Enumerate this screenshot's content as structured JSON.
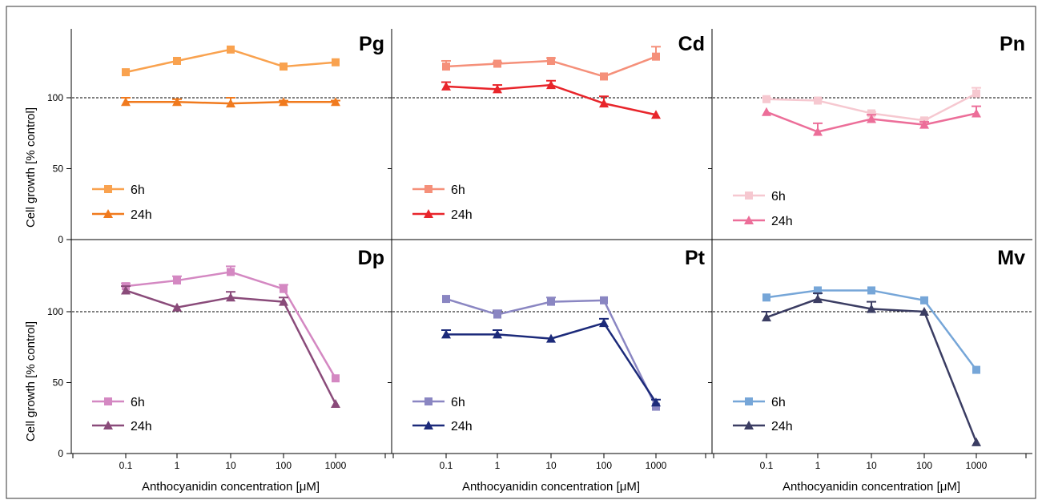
{
  "chart_data": {
    "type": "line",
    "x_categories": [
      "0.1",
      "1",
      "10",
      "100",
      "1000"
    ],
    "xlabel": "Anthocyanidin concentration [μM]",
    "ylabel": "Cell growth [% control]",
    "ylim": [
      0,
      150
    ],
    "yticks": [
      "0",
      "50",
      "100"
    ],
    "reference_line": 100,
    "legend_position": "bottom-left",
    "panels": [
      {
        "title": "Pg",
        "series": [
          {
            "name": "6h",
            "marker": "square",
            "color": "#f9a24f",
            "values": [
              118,
              126,
              134,
              122,
              125
            ],
            "errors": [
              0,
              0,
              0,
              0,
              0
            ]
          },
          {
            "name": "24h",
            "marker": "triangle",
            "color": "#f07a1e",
            "values": [
              97,
              97,
              96,
              97,
              97
            ],
            "errors": [
              3,
              2,
              4,
              1,
              1
            ]
          }
        ]
      },
      {
        "title": "Cd",
        "series": [
          {
            "name": "6h",
            "marker": "square",
            "color": "#f5907a",
            "values": [
              122,
              124,
              126,
              115,
              129
            ],
            "errors": [
              4,
              1,
              2,
              0,
              7
            ]
          },
          {
            "name": "24h",
            "marker": "triangle",
            "color": "#e8252b",
            "values": [
              108,
              106,
              109,
              96,
              88
            ],
            "errors": [
              3,
              3,
              3,
              5,
              0
            ]
          }
        ]
      },
      {
        "title": "Pn",
        "series": [
          {
            "name": "6h",
            "marker": "square",
            "color": "#f6c8d0",
            "values": [
              99,
              98,
              89,
              84,
              103
            ],
            "errors": [
              1,
              1,
              1,
              1,
              4
            ]
          },
          {
            "name": "24h",
            "marker": "triangle",
            "color": "#ec6e99",
            "values": [
              90,
              76,
              85,
              81,
              89
            ],
            "errors": [
              0,
              6,
              3,
              2,
              5
            ]
          }
        ]
      },
      {
        "title": "Dp",
        "series": [
          {
            "name": "6h",
            "marker": "square",
            "color": "#d488c2",
            "values": [
              118,
              122,
              128,
              116,
              53
            ],
            "errors": [
              2,
              3,
              4,
              3,
              0
            ]
          },
          {
            "name": "24h",
            "marker": "triangle",
            "color": "#8a4b7a",
            "values": [
              115,
              103,
              110,
              107,
              35
            ],
            "errors": [
              3,
              0,
              4,
              3,
              0
            ]
          }
        ]
      },
      {
        "title": "Pt",
        "series": [
          {
            "name": "6h",
            "marker": "square",
            "color": "#8a86c2",
            "values": [
              109,
              98,
              107,
              108,
              33
            ],
            "errors": [
              0,
              3,
              3,
              0,
              0
            ]
          },
          {
            "name": "24h",
            "marker": "triangle",
            "color": "#1c2a7a",
            "values": [
              84,
              84,
              81,
              92,
              36
            ],
            "errors": [
              3,
              3,
              0,
              3,
              2
            ]
          }
        ]
      },
      {
        "title": "Mv",
        "series": [
          {
            "name": "6h",
            "marker": "square",
            "color": "#76a6d8",
            "values": [
              110,
              115,
              115,
              108,
              59
            ],
            "errors": [
              0,
              0,
              0,
              0,
              0
            ]
          },
          {
            "name": "24h",
            "marker": "triangle",
            "color": "#3b3d63",
            "values": [
              96,
              109,
              102,
              100,
              8
            ],
            "errors": [
              4,
              4,
              5,
              0,
              0
            ]
          }
        ]
      }
    ]
  }
}
